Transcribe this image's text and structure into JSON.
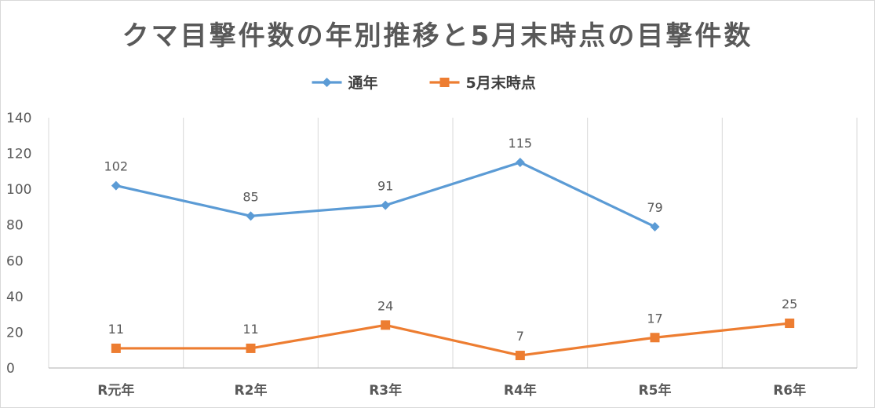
{
  "chart_data": {
    "type": "line",
    "title": "クマ目撃件数の年別推移と5月末時点の目撃件数",
    "categories": [
      "R元年",
      "R2年",
      "R3年",
      "R4年",
      "R5年",
      "R6年"
    ],
    "series": [
      {
        "name": "通年",
        "values": [
          102,
          85,
          91,
          115,
          79,
          null
        ],
        "color": "#5b9bd5",
        "marker": "diamond"
      },
      {
        "name": "5月末時点",
        "values": [
          11,
          11,
          24,
          7,
          17,
          25
        ],
        "color": "#ed7d31",
        "marker": "square"
      }
    ],
    "ylim": [
      0,
      140
    ],
    "yticks": [
      0,
      20,
      40,
      60,
      80,
      100,
      120,
      140
    ],
    "grid": "vertical",
    "legend_position": "top",
    "data_labels": true
  }
}
